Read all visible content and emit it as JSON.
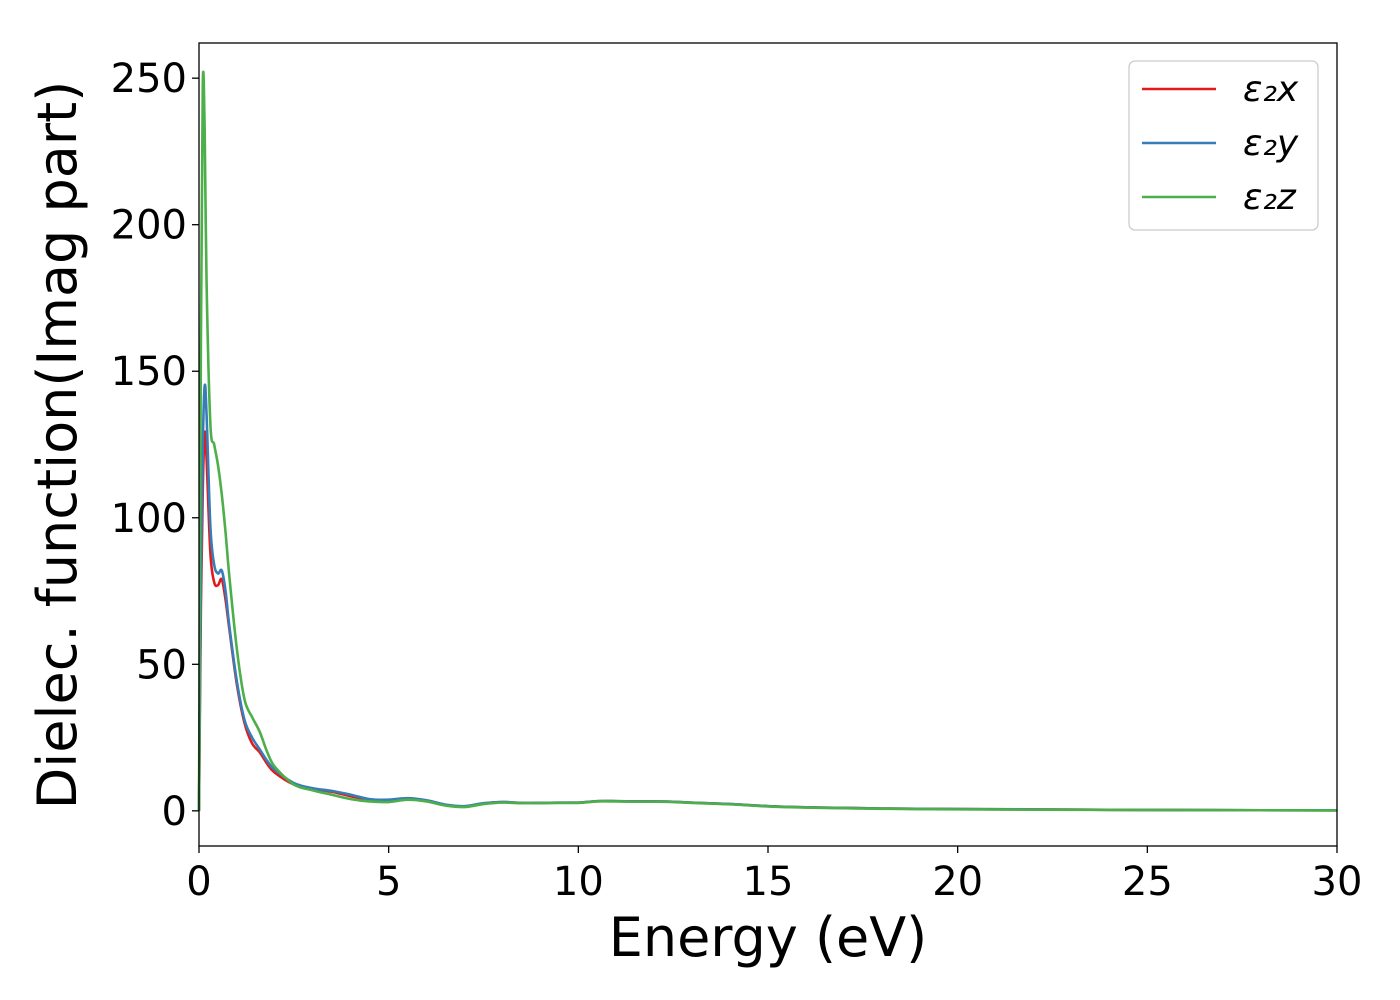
{
  "chart_data": {
    "type": "line",
    "title": "",
    "xlabel": "Energy (eV)",
    "ylabel": "Dielec. function(Imag part)",
    "xlim": [
      0,
      30
    ],
    "ylim": [
      -12,
      262
    ],
    "xticks": [
      0,
      5,
      10,
      15,
      20,
      25,
      30
    ],
    "yticks": [
      0,
      50,
      100,
      150,
      200,
      250
    ],
    "grid": false,
    "legend_position": "top-right",
    "x": [
      0,
      0.05,
      0.1,
      0.15,
      0.2,
      0.3,
      0.4,
      0.5,
      0.6,
      0.7,
      0.8,
      1.0,
      1.2,
      1.4,
      1.6,
      1.8,
      2.0,
      2.5,
      3.0,
      3.5,
      4.0,
      4.5,
      5.0,
      5.5,
      6.0,
      6.5,
      7.0,
      7.5,
      8.0,
      8.5,
      9.0,
      9.5,
      10.0,
      10.5,
      11.0,
      11.5,
      12.0,
      12.5,
      13.0,
      14.0,
      15.0,
      16.0,
      17.0,
      18.0,
      20.0,
      22.0,
      25.0,
      28.0,
      30.0
    ],
    "series": [
      {
        "name": "ε₂x",
        "color": "#e31a1c",
        "values": [
          0,
          70,
          110,
          129,
          120,
          88,
          78,
          77,
          79,
          72,
          62,
          43,
          30,
          23,
          20,
          16,
          13,
          9,
          7.5,
          6.5,
          5,
          3.8,
          3.6,
          4.2,
          3.5,
          2,
          1.5,
          2.5,
          3,
          2.7,
          2.7,
          2.8,
          2.8,
          3.3,
          3.3,
          3.2,
          3.2,
          3.1,
          2.8,
          2.3,
          1.6,
          1.2,
          1,
          0.8,
          0.6,
          0.5,
          0.3,
          0.2,
          0.2
        ]
      },
      {
        "name": "ε₂y",
        "color": "#377eb8",
        "values": [
          0,
          80,
          125,
          145,
          135,
          97,
          84,
          81,
          82,
          75,
          63,
          44,
          31,
          25,
          21,
          17,
          14,
          9.5,
          7.7,
          6.8,
          5.5,
          4,
          3.8,
          4.3,
          3.6,
          2.1,
          1.6,
          2.6,
          3,
          2.7,
          2.7,
          2.8,
          2.8,
          3.3,
          3.3,
          3.2,
          3.2,
          3.1,
          2.8,
          2.3,
          1.6,
          1.2,
          1,
          0.8,
          0.6,
          0.5,
          0.3,
          0.2,
          0.2
        ]
      },
      {
        "name": "ε₂z",
        "color": "#4daf4a",
        "values": [
          0,
          160,
          248,
          232,
          180,
          132,
          125,
          118,
          108,
          95,
          80,
          55,
          38,
          32,
          27,
          20,
          15,
          9,
          7,
          5.5,
          4,
          3.2,
          3,
          3.8,
          3.2,
          1.8,
          1.3,
          2.3,
          2.8,
          2.6,
          2.6,
          2.7,
          2.7,
          3.2,
          3.2,
          3.1,
          3.1,
          3,
          2.7,
          2.2,
          1.5,
          1.1,
          0.9,
          0.7,
          0.5,
          0.4,
          0.3,
          0.2,
          0.1
        ]
      }
    ]
  }
}
